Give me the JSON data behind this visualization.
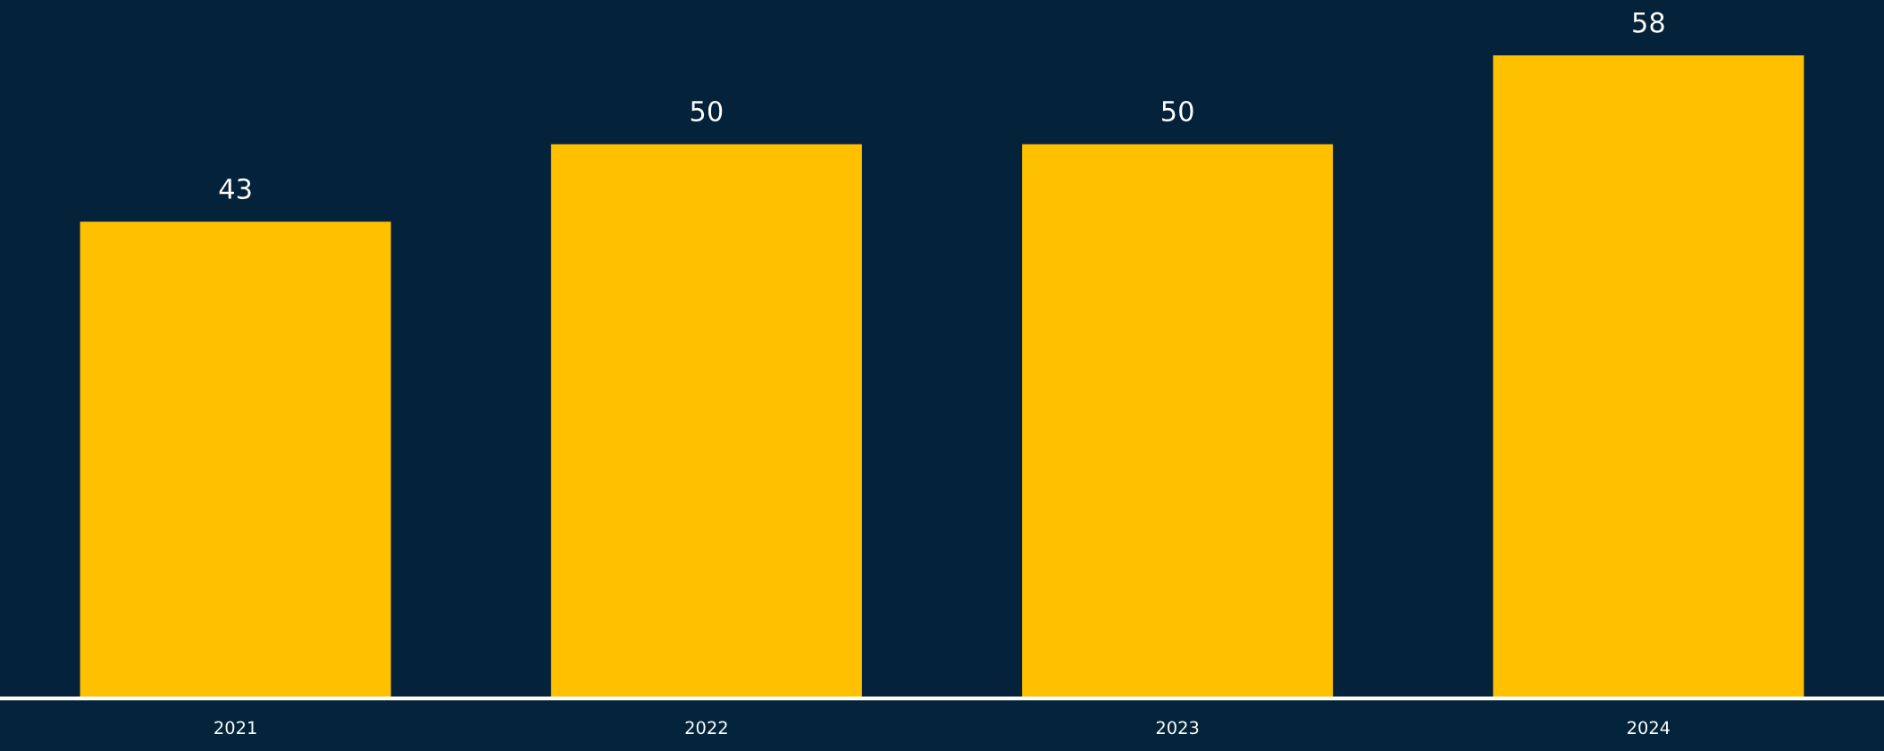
{
  "chart_data": {
    "type": "bar",
    "categories": [
      "2021",
      "2022",
      "2023",
      "2024"
    ],
    "values": [
      43,
      50,
      50,
      58
    ],
    "color": "#ffc000",
    "data_labels": true,
    "ylim": [
      0,
      63
    ],
    "tick_labels": "x",
    "grid": false,
    "legend": false
  }
}
